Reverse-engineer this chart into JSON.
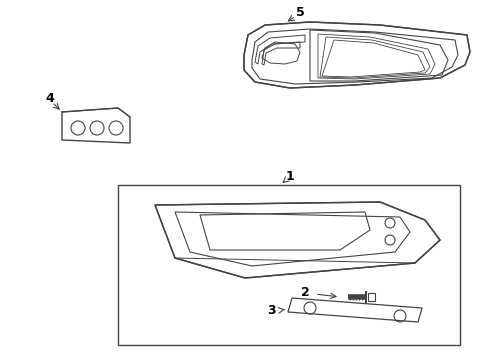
{
  "background_color": "#ffffff",
  "line_color": "#444444",
  "fig_width": 4.89,
  "fig_height": 3.6,
  "dpi": 100,
  "label_fontsize": 9
}
